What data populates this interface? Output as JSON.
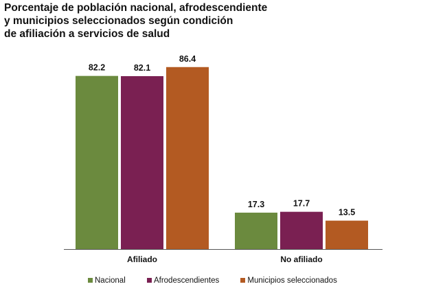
{
  "title_lines": [
    "Porcentaje de población nacional, afrodescendiente",
    "y municipios seleccionados según condición",
    "de afiliación a servicios de salud"
  ],
  "chart_data": {
    "type": "bar",
    "title": "Porcentaje de población nacional, afrodescendiente y municipios seleccionados según condición de afiliación a servicios de salud",
    "categories": [
      "Afiliado",
      "No afiliado"
    ],
    "series": [
      {
        "name": "Nacional",
        "values": [
          82.2,
          17.3
        ],
        "color": "#6b8a3e"
      },
      {
        "name": "Afrodescendientes",
        "values": [
          82.1,
          17.7
        ],
        "color": "#7a2052"
      },
      {
        "name": "Municipios seleccionados",
        "values": [
          86.4,
          13.5
        ],
        "color": "#b35a22"
      }
    ],
    "value_labels": [
      [
        "82.2",
        "17.3"
      ],
      [
        "82.1",
        "17.7"
      ],
      [
        "86.4",
        "13.5"
      ]
    ],
    "ylim": [
      0,
      100
    ],
    "grid": false,
    "xlabel": "",
    "ylabel": "",
    "legend_position": "bottom"
  }
}
